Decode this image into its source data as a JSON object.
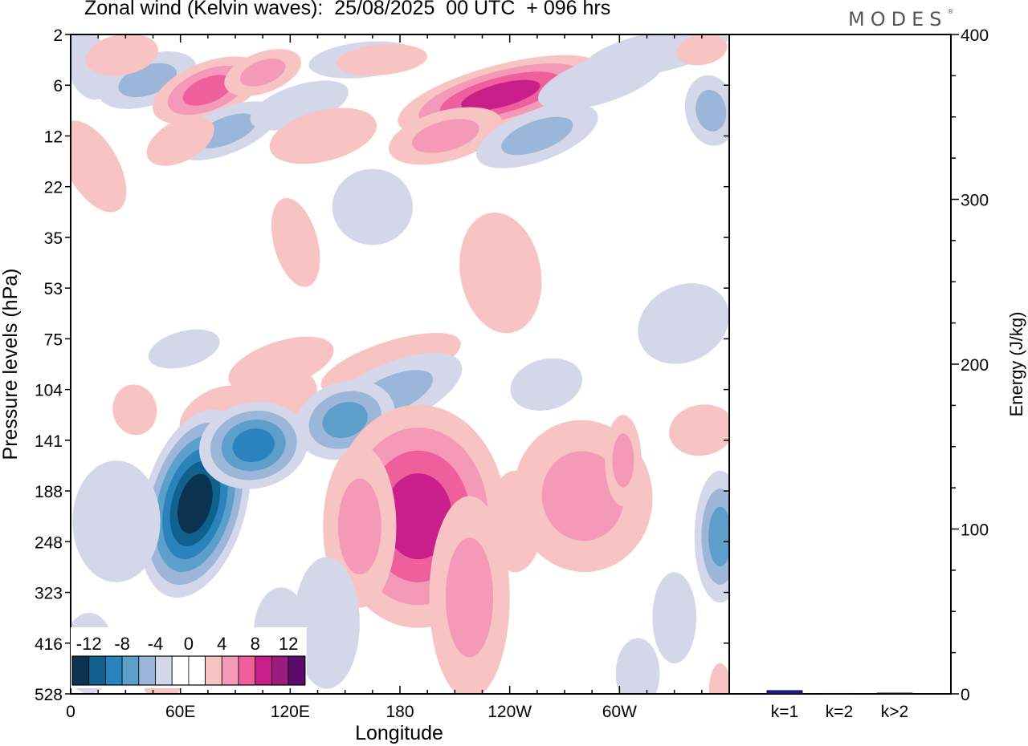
{
  "header": {
    "title": "Zonal wind (Kelvin waves):  25/08/2025  00 UTC  + 096 hrs",
    "brand": "MODES"
  },
  "chart_data": [
    {
      "type": "heatmap",
      "name": "hovmoller-longitude-pressure",
      "title": "Zonal wind (Kelvin waves)",
      "xlabel": "Longitude",
      "ylabel": "Pressure levels (hPa)",
      "x_ticks": [
        {
          "lon": 0,
          "label": "0"
        },
        {
          "lon": 60,
          "label": "60E"
        },
        {
          "lon": 120,
          "label": "120E"
        },
        {
          "lon": 180,
          "label": "180"
        },
        {
          "lon": 240,
          "label": "120W"
        },
        {
          "lon": 300,
          "label": "60W"
        }
      ],
      "xlim": [
        0,
        360
      ],
      "y_levels": [
        "2",
        "6",
        "12",
        "22",
        "35",
        "53",
        "75",
        "104",
        "141",
        "188",
        "248",
        "323",
        "416",
        "528"
      ],
      "colorbar": {
        "labels": [
          "-12",
          "-8",
          "-4",
          "0",
          "4",
          "8",
          "12"
        ],
        "colors": [
          "#0b3350",
          "#11618f",
          "#2a83bd",
          "#5d9fcb",
          "#9bb6d8",
          "#d4d7e9",
          "#ffffff",
          "#ffffff",
          "#f7c3c3",
          "#f599b8",
          "#ee5f9c",
          "#c81f8a",
          "#9a1c7d",
          "#5c0a6b"
        ]
      },
      "features": [
        {
          "kind": "negative",
          "lon": 65,
          "level_index": 9,
          "peak": -14
        },
        {
          "kind": "negative",
          "lon": 110,
          "level_index": 8,
          "peak": -7
        },
        {
          "kind": "negative",
          "lon": 150,
          "level_index": 7.2,
          "peak": -6
        },
        {
          "kind": "positive",
          "lon": 190,
          "level_index": 9.3,
          "peak": 8
        },
        {
          "kind": "positive",
          "lon": 235,
          "level_index": 1.2,
          "peak": 8
        },
        {
          "kind": "positive",
          "lon": 75,
          "level_index": 1.1,
          "peak": 6
        },
        {
          "kind": "negative",
          "lon": 355,
          "level_index": 9.8,
          "peak": -6
        }
      ]
    },
    {
      "type": "bar",
      "name": "energy-by-wavenumber",
      "categories": [
        "k=1",
        "k=2",
        "k>2"
      ],
      "values": [
        2.0,
        0.3,
        0.5
      ],
      "ylabel": "Energy (J/kg)",
      "ylim": [
        0,
        400
      ],
      "y_ticks": [
        "0",
        "100",
        "200",
        "300",
        "400"
      ],
      "bar_color": "#1a1aa0"
    }
  ]
}
